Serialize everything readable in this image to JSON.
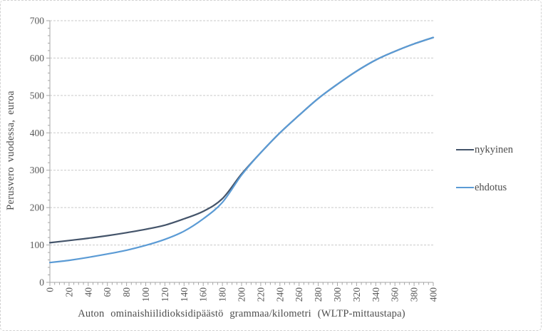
{
  "chart_data": {
    "type": "line",
    "title": "",
    "xlabel": "Auton ominaishiilidioksidipäästö grammaa/kilometri (WLTP-mittaustapa)",
    "ylabel": "Perusvero vuodessa, euroa",
    "x": [
      0,
      20,
      40,
      60,
      80,
      100,
      120,
      140,
      160,
      180,
      200,
      220,
      240,
      260,
      280,
      300,
      320,
      340,
      360,
      380,
      400
    ],
    "series": [
      {
        "name": "nykyinen",
        "color": "#44546A",
        "values": [
          106,
          112,
          118,
          125,
          133,
          142,
          153,
          170,
          190,
          224,
          290,
          347,
          400,
          447,
          492,
          530,
          565,
          595,
          618,
          638,
          655
        ]
      },
      {
        "name": "ehdotus",
        "color": "#5B9BD5",
        "values": [
          53,
          59,
          67,
          76,
          86,
          99,
          115,
          137,
          170,
          214,
          287,
          347,
          400,
          447,
          492,
          530,
          565,
          595,
          618,
          638,
          655
        ]
      }
    ],
    "xlim": [
      0,
      400
    ],
    "ylim": [
      0,
      700
    ],
    "yticks": [
      0,
      100,
      200,
      300,
      400,
      500,
      600,
      700
    ],
    "x_minor_tick_step": 5,
    "x_major_tick_step": 20,
    "y_minor_tick_step": 20,
    "grid": true,
    "legend_position": "right"
  },
  "colors": {
    "background": "#FFFFFF",
    "border": "#D2D2D2",
    "gridline": "#C9C9C9",
    "axis": "#A6A6A6",
    "tick_label": "#595959",
    "axis_title": "#4D4D4D"
  }
}
